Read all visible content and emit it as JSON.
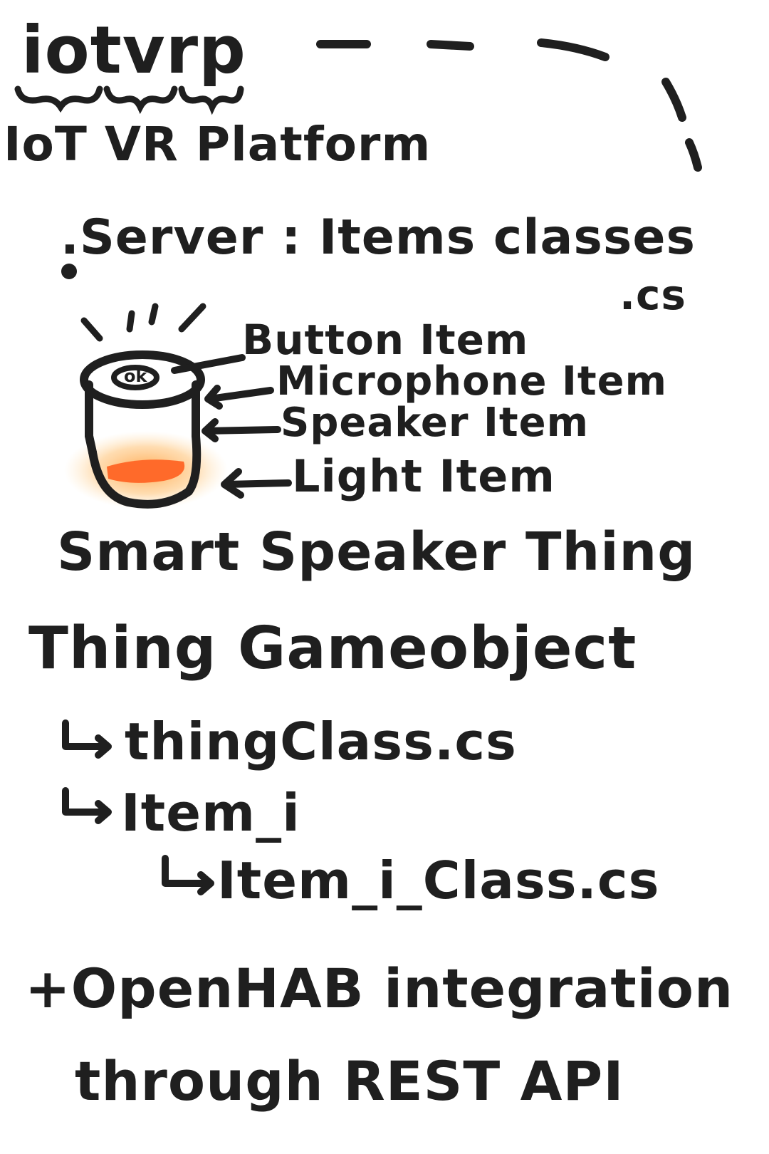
{
  "header": {
    "abbr": "iotvrp",
    "full": "IoT VR Platform"
  },
  "server": {
    "label": ".Server : Items classes",
    "ext": ".cs"
  },
  "items": [
    {
      "label": "Button Item"
    },
    {
      "label": "Microphone Item"
    },
    {
      "label": "Speaker Item"
    },
    {
      "label": "Light Item"
    }
  ],
  "device": {
    "label": "Smart Speaker Thing",
    "icon": "smart-speaker-icon",
    "light_color": "#ff6a2a",
    "glow_color": "#ffb45a",
    "button_text": "ok"
  },
  "hierarchy": {
    "root": "Thing Gameobject",
    "children": [
      {
        "label": "thingClass.cs"
      },
      {
        "label": "Item_i"
      },
      {
        "label": "Item_i_Class.cs"
      }
    ]
  },
  "footer": {
    "line1": "+OpenHAB integration",
    "line2": "through REST API"
  }
}
